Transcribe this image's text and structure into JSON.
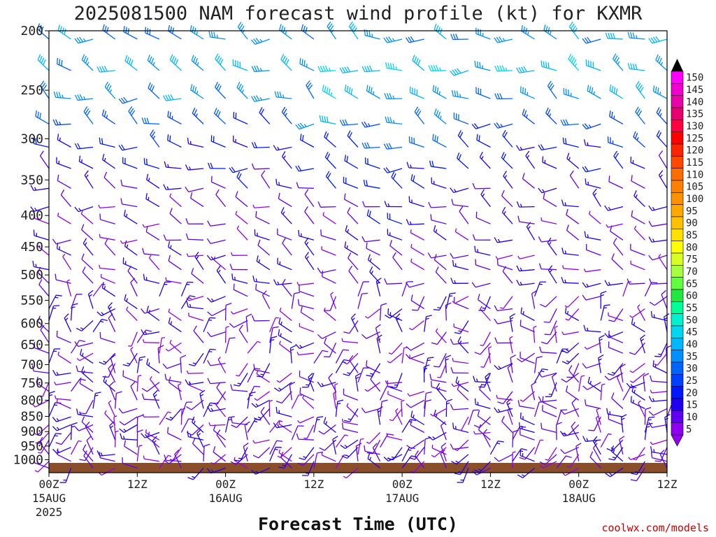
{
  "chart_data": {
    "type": "wind-barb",
    "title": "2025081500 NAM forecast wind profile (kt) for KXMR",
    "xlabel": "Forecast Time (UTC)",
    "ylabel": "",
    "units": "kt",
    "y_axis": {
      "label_values": [
        "200",
        "250",
        "300",
        "350",
        "400",
        "450",
        "500",
        "550",
        "600",
        "650",
        "700",
        "750",
        "800",
        "850",
        "900",
        "950",
        "1000"
      ],
      "range_hPa": [
        200,
        1050
      ],
      "scale": "log"
    },
    "x_axis": {
      "ticks": [
        {
          "hour": 0,
          "label": "00Z",
          "sub": "15AUG",
          "sub2": "2025"
        },
        {
          "hour": 12,
          "label": "12Z",
          "sub": "",
          "sub2": ""
        },
        {
          "hour": 24,
          "label": "00Z",
          "sub": "16AUG",
          "sub2": ""
        },
        {
          "hour": 36,
          "label": "12Z",
          "sub": "",
          "sub2": ""
        },
        {
          "hour": 48,
          "label": "00Z",
          "sub": "17AUG",
          "sub2": ""
        },
        {
          "hour": 60,
          "label": "12Z",
          "sub": "",
          "sub2": ""
        },
        {
          "hour": 72,
          "label": "00Z",
          "sub": "18AUG",
          "sub2": ""
        },
        {
          "hour": 84,
          "label": "12Z",
          "sub": "",
          "sub2": ""
        }
      ],
      "range_hours": [
        0,
        84
      ],
      "step_hours": 3
    },
    "colorbar": {
      "levels": [
        "150",
        "145",
        "140",
        "135",
        "130",
        "125",
        "120",
        "115",
        "110",
        "105",
        "100",
        "95",
        "90",
        "85",
        "80",
        "75",
        "70",
        "65",
        "60",
        "55",
        "50",
        "45",
        "40",
        "35",
        "30",
        "25",
        "20",
        "15",
        "10",
        "5"
      ],
      "colors": [
        "#ff00ff",
        "#f000d0",
        "#e800a8",
        "#e80070",
        "#ff0040",
        "#ff0000",
        "#ff2400",
        "#ff4800",
        "#ff6c00",
        "#ff8000",
        "#ff9000",
        "#ffa800",
        "#ffc000",
        "#ffe000",
        "#ffff00",
        "#d8ff20",
        "#a8ff40",
        "#60ff40",
        "#20e840",
        "#00ff98",
        "#00f0d0",
        "#00d8f0",
        "#00b8ff",
        "#0090ff",
        "#0064ff",
        "#0040ff",
        "#0018ff",
        "#2000f0",
        "#6000f0",
        "#9000f0"
      ],
      "cap_top": "#000000",
      "cap_bottom": "#9000f0"
    },
    "terrain_color": "#8b4e2a",
    "pressure_levels": [
      1025,
      1000,
      975,
      950,
      925,
      900,
      875,
      850,
      825,
      800,
      775,
      750,
      725,
      700,
      675,
      650,
      625,
      600,
      575,
      550,
      525,
      500,
      475,
      450,
      425,
      400,
      375,
      350,
      325,
      300,
      275,
      250,
      225,
      200
    ],
    "barbs_note": "Wind barbs plotted every 3 forecast hours at each pressure level; speed in kt encoded by barb flags and color."
  },
  "credit": "coolwx.com/models"
}
